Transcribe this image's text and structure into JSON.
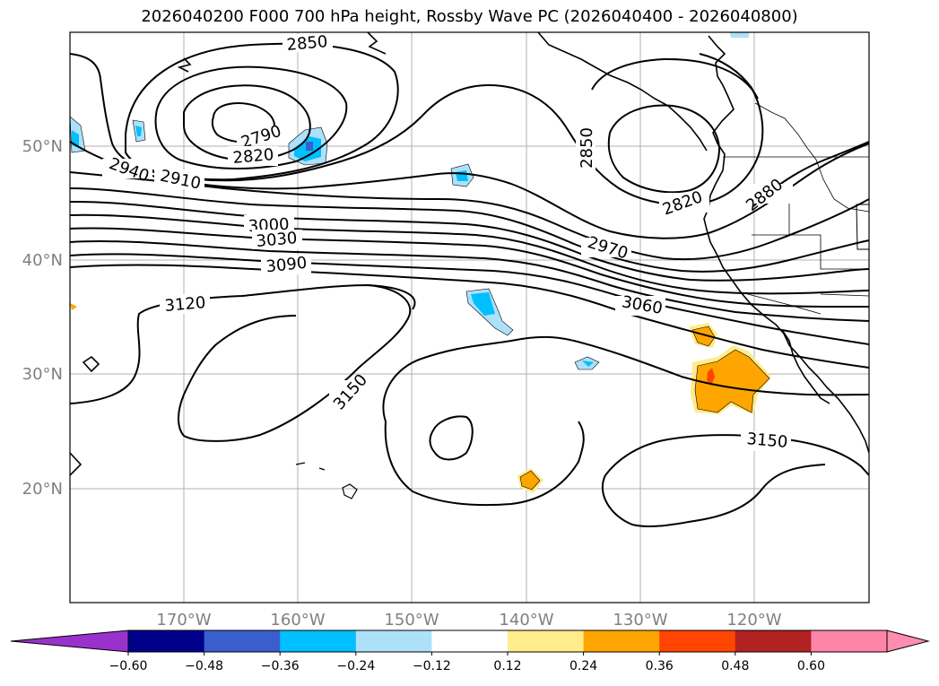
{
  "title": "2026040200 F000 700 hPa height, Rossby Wave PC (2026040400 - 2026040800)",
  "y_axis_labels": [
    "50°N",
    "40°N",
    "30°N",
    "20°N"
  ],
  "x_axis_labels": [
    "170°W",
    "160°W",
    "150°W",
    "140°W",
    "130°W",
    "120°W"
  ],
  "contour_labels": [
    "2850",
    "2790",
    "2820",
    "2940",
    "2910",
    "3000",
    "3030",
    "3090",
    "3120",
    "3150",
    "2850",
    "2820",
    "2880",
    "2970",
    "3060",
    "3150"
  ],
  "colorbar": {
    "colors": [
      "#9932CC",
      "#00008B",
      "#3A5FCD",
      "#00BFFF",
      "#ADE1FA",
      "#FFFFFF",
      "#FFEC8B",
      "#FFA500",
      "#FF4500",
      "#B22222",
      "#FF85A8",
      "#FF8DB0"
    ],
    "tick_labels": [
      "−0.60",
      "−0.48",
      "−0.36",
      "−0.24",
      "−0.12",
      "0.12",
      "0.24",
      "0.36",
      "0.48",
      "0.60"
    ]
  },
  "chart_data": {
    "type": "map",
    "title": "2026040200 F000 700 hPa height, Rossby Wave PC (2026040400 - 2026040800)",
    "variable_contours": "700 hPa geopotential height",
    "contour_levels": [
      2790,
      2820,
      2850,
      2880,
      2910,
      2940,
      2970,
      3000,
      3030,
      3060,
      3090,
      3120,
      3150
    ],
    "shaded_variable": "Rossby Wave PC",
    "shading_levels": [
      -0.6,
      -0.48,
      -0.36,
      -0.24,
      -0.12,
      0.12,
      0.24,
      0.36,
      0.48,
      0.6
    ],
    "lon_range": [
      -180,
      -110
    ],
    "lat_range": [
      10,
      60
    ]
  }
}
